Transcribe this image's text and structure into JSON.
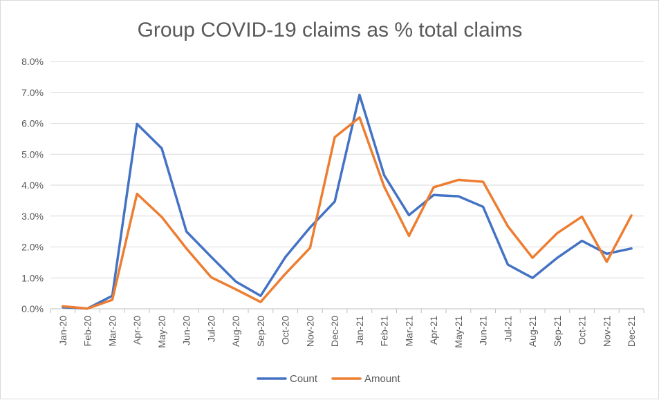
{
  "chart_data": {
    "type": "line",
    "title": "Group COVID-19 claims as % total claims",
    "xlabel": "",
    "ylabel": "",
    "ylim": [
      0,
      0.08
    ],
    "y_ticks": [
      "0.0%",
      "1.0%",
      "2.0%",
      "3.0%",
      "4.0%",
      "5.0%",
      "6.0%",
      "7.0%",
      "8.0%"
    ],
    "categories": [
      "Jan-20",
      "Feb-20",
      "Mar-20",
      "Apr-20",
      "May-20",
      "Jun-20",
      "Jul-20",
      "Aug-20",
      "Sep-20",
      "Oct-20",
      "Nov-20",
      "Dec-20",
      "Jan-21",
      "Feb-21",
      "Mar-21",
      "Apr-21",
      "May-21",
      "Jun-21",
      "Jul-21",
      "Aug-21",
      "Sep-21",
      "Oct-21",
      "Nov-21",
      "Dec-21"
    ],
    "series": [
      {
        "name": "Count",
        "color": "#4472c4",
        "values": [
          0.0005,
          0.0001,
          0.0042,
          0.0598,
          0.0519,
          0.025,
          0.0168,
          0.0088,
          0.0042,
          0.0167,
          0.0263,
          0.0347,
          0.0692,
          0.0432,
          0.0303,
          0.0368,
          0.0364,
          0.033,
          0.0143,
          0.01,
          0.0165,
          0.022,
          0.0178,
          0.0195
        ]
      },
      {
        "name": "Amount",
        "color": "#ed7d31",
        "values": [
          0.0008,
          0.0001,
          0.0029,
          0.0372,
          0.0297,
          0.0195,
          0.0102,
          0.0063,
          0.0022,
          0.0113,
          0.0197,
          0.0555,
          0.0619,
          0.0395,
          0.0236,
          0.0393,
          0.0417,
          0.0411,
          0.0267,
          0.0165,
          0.0245,
          0.0298,
          0.0152,
          0.0302
        ]
      }
    ],
    "grid": true,
    "legend_position": "bottom"
  }
}
